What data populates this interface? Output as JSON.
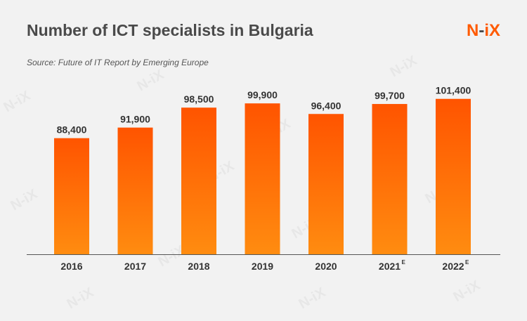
{
  "header": {
    "title": "Number of ICT specialists in Bulgaria",
    "source": "Source: Future of IT Report by Emerging Europe"
  },
  "logo": {
    "text_n": "N",
    "text_dash": "-",
    "text_i": "i",
    "text_x": "X"
  },
  "watermark": "N-iX",
  "colors": {
    "bar_top": "#ff5400",
    "bar_bottom": "#ff8c10",
    "accent": "#ff5a00",
    "axis": "#555555"
  },
  "chart_data": {
    "type": "bar",
    "title": "Number of ICT specialists in Bulgaria",
    "categories": [
      "2016",
      "2017",
      "2018",
      "2019",
      "2020",
      "2021",
      "2022"
    ],
    "category_superscripts": [
      "",
      "",
      "",
      "",
      "",
      "E",
      "E"
    ],
    "values": [
      88400,
      91900,
      98500,
      99900,
      96400,
      99700,
      101400
    ],
    "value_labels": [
      "88,400",
      "91,900",
      "98,500",
      "99,900",
      "96,400",
      "99,700",
      "101,400"
    ],
    "xlabel": "",
    "ylabel": "",
    "ylim": [
      50000,
      102500
    ],
    "grid": false,
    "legend": "none"
  }
}
